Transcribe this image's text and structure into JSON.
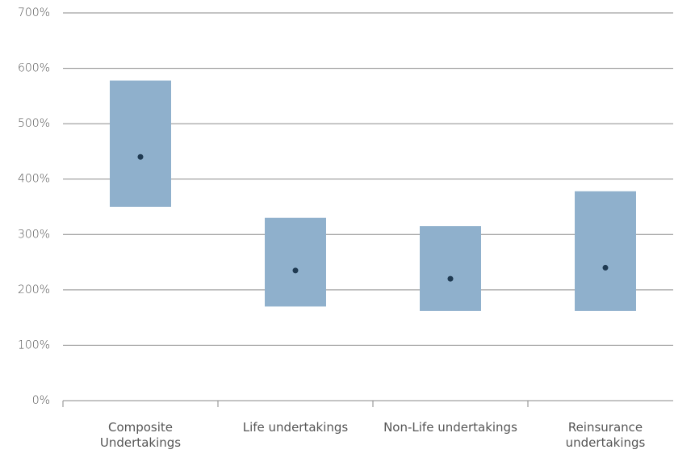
{
  "chart_data": {
    "type": "range",
    "categories": [
      "Composite Undertakings",
      "Life undertakings",
      "Non-Life undertakings",
      "Reinsurance undertakings"
    ],
    "low": [
      350,
      170,
      162,
      162
    ],
    "high": [
      578,
      330,
      315,
      378
    ],
    "median": [
      440,
      235,
      220,
      240
    ],
    "bar_color": "#8fb0cc",
    "dot_color": "#1f3a52",
    "ylim": [
      0,
      700
    ],
    "yticks": [
      {
        "value": 0,
        "label": "0%"
      },
      {
        "value": 100,
        "label": "100%"
      },
      {
        "value": 200,
        "label": "200%"
      },
      {
        "value": 300,
        "label": "300%"
      },
      {
        "value": 400,
        "label": "400%"
      },
      {
        "value": 500,
        "label": "500%"
      },
      {
        "value": 600,
        "label": "600%"
      },
      {
        "value": 700,
        "label": "700%"
      }
    ],
    "grid": true
  }
}
